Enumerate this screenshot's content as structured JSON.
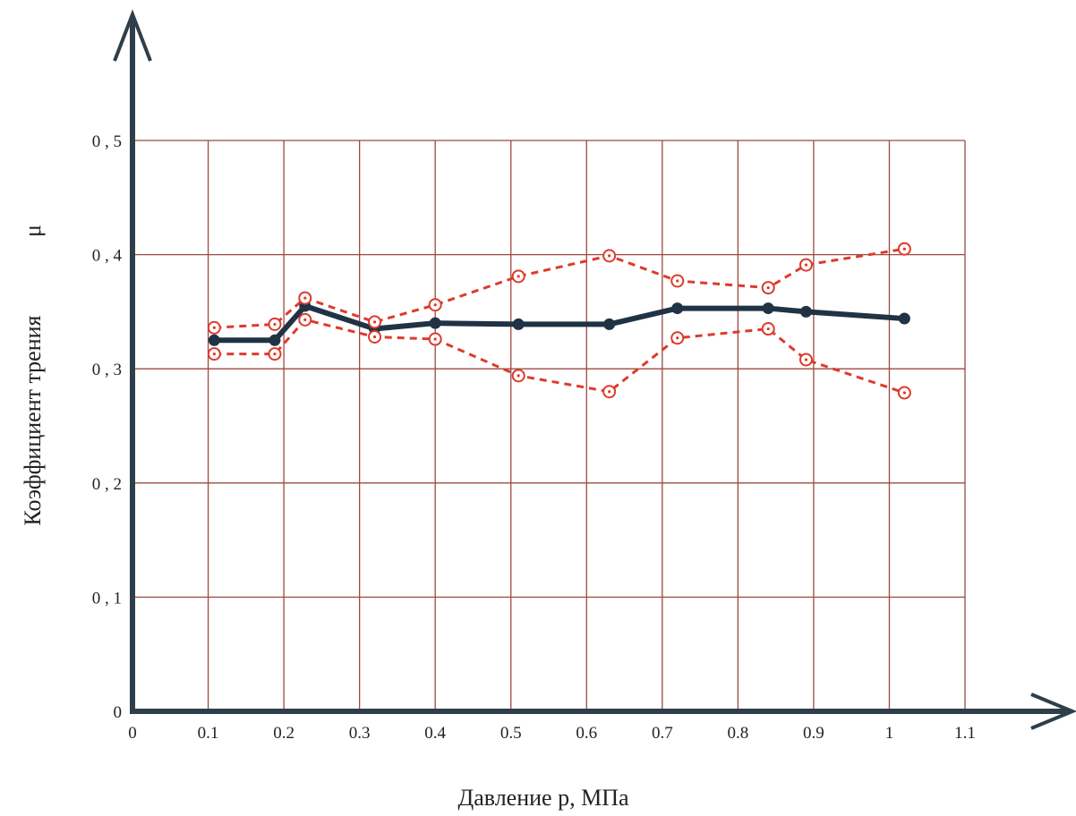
{
  "chart_data": {
    "type": "line",
    "xlabel": "Давление p, МПа",
    "ylabel": "Коэффициент трения",
    "ylabel_symbol": "μ",
    "xlim": [
      0,
      1.1
    ],
    "ylim": [
      0,
      0.5
    ],
    "grid": true,
    "legend": "none",
    "x_ticks": [
      {
        "value": 0,
        "label": "0"
      },
      {
        "value": 0.1,
        "label": "0.1"
      },
      {
        "value": 0.2,
        "label": "0.2"
      },
      {
        "value": 0.3,
        "label": "0.3"
      },
      {
        "value": 0.4,
        "label": "0.4"
      },
      {
        "value": 0.5,
        "label": "0.5"
      },
      {
        "value": 0.6,
        "label": "0.6"
      },
      {
        "value": 0.7,
        "label": "0.7"
      },
      {
        "value": 0.8,
        "label": "0.8"
      },
      {
        "value": 0.9,
        "label": "0.9"
      },
      {
        "value": 1.0,
        "label": "1"
      },
      {
        "value": 1.1,
        "label": "1.1"
      }
    ],
    "y_ticks": [
      {
        "value": 0,
        "label": "0"
      },
      {
        "value": 0.1,
        "label": "0 , 1"
      },
      {
        "value": 0.2,
        "label": "0 , 2"
      },
      {
        "value": 0.3,
        "label": "0 , 3"
      },
      {
        "value": 0.4,
        "label": "0 , 4"
      },
      {
        "value": 0.5,
        "label": "0 , 5"
      }
    ],
    "series": [
      {
        "color": "#1f3344",
        "style": "solid",
        "marker": "filled-circle",
        "x": [
          0.108,
          0.188,
          0.228,
          0.32,
          0.4,
          0.51,
          0.63,
          0.72,
          0.84,
          0.89,
          1.02
        ],
        "y": [
          0.325,
          0.325,
          0.355,
          0.335,
          0.34,
          0.339,
          0.339,
          0.353,
          0.353,
          0.35,
          0.344
        ]
      },
      {
        "color": "#dd3b2c",
        "style": "dashed",
        "marker": "open-circle",
        "x": [
          0.108,
          0.188,
          0.228,
          0.32,
          0.4,
          0.51,
          0.63,
          0.72,
          0.84,
          0.89,
          1.02
        ],
        "y": [
          0.336,
          0.339,
          0.362,
          0.341,
          0.356,
          0.381,
          0.399,
          0.377,
          0.371,
          0.391,
          0.405
        ]
      },
      {
        "color": "#dd3b2c",
        "style": "dashed",
        "marker": "open-circle",
        "x": [
          0.108,
          0.188,
          0.228,
          0.32,
          0.4,
          0.51,
          0.63,
          0.72,
          0.84,
          0.89,
          1.02
        ],
        "y": [
          0.313,
          0.313,
          0.343,
          0.328,
          0.326,
          0.294,
          0.28,
          0.327,
          0.335,
          0.308,
          0.279
        ]
      }
    ]
  }
}
